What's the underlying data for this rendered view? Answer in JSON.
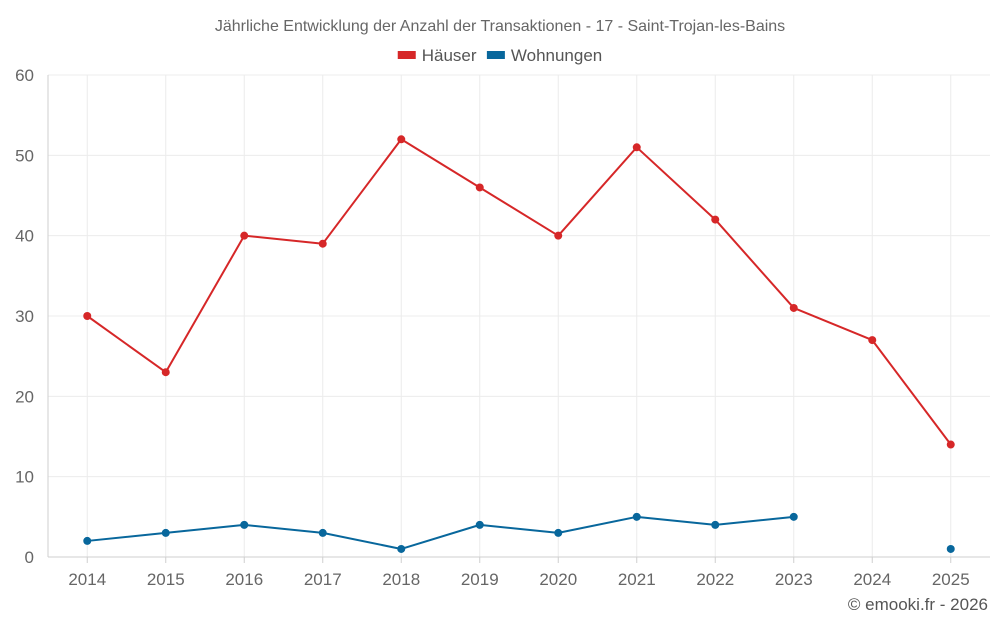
{
  "chart_data": {
    "type": "line",
    "title": "Jährliche Entwicklung der Anzahl der Transaktionen - 17 - Saint-Trojan-les-Bains",
    "categories": [
      "2014",
      "2015",
      "2016",
      "2017",
      "2018",
      "2019",
      "2020",
      "2021",
      "2022",
      "2023",
      "2024",
      "2025"
    ],
    "ylim": [
      0,
      60
    ],
    "yticks": [
      0,
      10,
      20,
      30,
      40,
      50,
      60
    ],
    "grid": true,
    "legend_position": "top-center",
    "series": [
      {
        "name": "Häuser",
        "color": "#d62728",
        "values": [
          30,
          23,
          40,
          39,
          52,
          46,
          40,
          51,
          42,
          31,
          27,
          14
        ]
      },
      {
        "name": "Wohnungen",
        "color": "#08679c",
        "values": [
          2,
          3,
          4,
          3,
          1,
          4,
          3,
          5,
          4,
          5,
          null,
          1
        ]
      }
    ],
    "xlabel": "",
    "ylabel": ""
  },
  "credit": "© emooki.fr - 2026"
}
